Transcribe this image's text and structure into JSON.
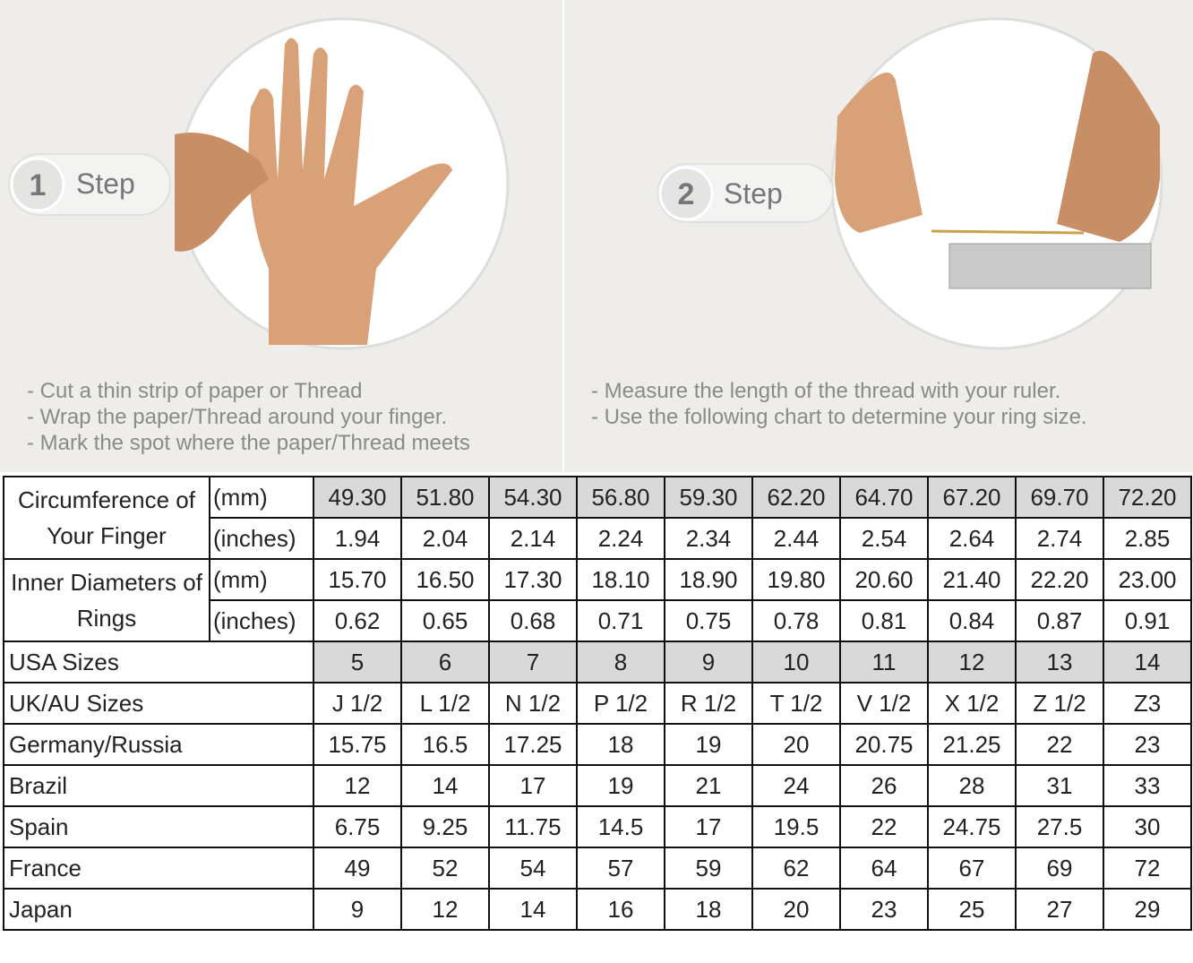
{
  "header": {
    "steps": [
      {
        "number": "1",
        "label": "Step",
        "bullets": [
          "- Cut a thin strip of paper or Thread",
          "- Wrap the paper/Thread around your finger.",
          "- Mark the spot where the paper/Thread meets"
        ]
      },
      {
        "number": "2",
        "label": "Step",
        "bullets": [
          "- Measure the length of the thread with your ruler.",
          "- Use the following chart to determine your ring size."
        ]
      }
    ]
  },
  "table": {
    "shade_color": "#d9d9d9",
    "groups": [
      {
        "label": "Circumference of Your Finger",
        "rows": [
          {
            "unit": "(mm)",
            "shaded": true,
            "values": [
              "49.30",
              "51.80",
              "54.30",
              "56.80",
              "59.30",
              "62.20",
              "64.70",
              "67.20",
              "69.70",
              "72.20"
            ]
          },
          {
            "unit": "(inches)",
            "shaded": false,
            "values": [
              "1.94",
              "2.04",
              "2.14",
              "2.24",
              "2.34",
              "2.44",
              "2.54",
              "2.64",
              "2.74",
              "2.85"
            ]
          }
        ]
      },
      {
        "label": "Inner Diameters of Rings",
        "rows": [
          {
            "unit": "(mm)",
            "shaded": false,
            "values": [
              "15.70",
              "16.50",
              "17.30",
              "18.10",
              "18.90",
              "19.80",
              "20.60",
              "21.40",
              "22.20",
              "23.00"
            ]
          },
          {
            "unit": "(inches)",
            "shaded": false,
            "values": [
              "0.62",
              "0.65",
              "0.68",
              "0.71",
              "0.75",
              "0.78",
              "0.81",
              "0.84",
              "0.87",
              "0.91"
            ]
          }
        ]
      }
    ],
    "rows": [
      {
        "label": "USA Sizes",
        "shaded": true,
        "values": [
          "5",
          "6",
          "7",
          "8",
          "9",
          "10",
          "11",
          "12",
          "13",
          "14"
        ]
      },
      {
        "label": "UK/AU Sizes",
        "shaded": false,
        "values": [
          "J 1/2",
          "L 1/2",
          "N 1/2",
          "P 1/2",
          "R 1/2",
          "T 1/2",
          "V 1/2",
          "X 1/2",
          "Z 1/2",
          "Z3"
        ]
      },
      {
        "label": "Germany/Russia",
        "shaded": false,
        "values": [
          "15.75",
          "16.5",
          "17.25",
          "18",
          "19",
          "20",
          "20.75",
          "21.25",
          "22",
          "23"
        ]
      },
      {
        "label": "Brazil",
        "shaded": false,
        "values": [
          "12",
          "14",
          "17",
          "19",
          "21",
          "24",
          "26",
          "28",
          "31",
          "33"
        ]
      },
      {
        "label": "Spain",
        "shaded": false,
        "values": [
          "6.75",
          "9.25",
          "11.75",
          "14.5",
          "17",
          "19.5",
          "22",
          "24.75",
          "27.5",
          "30"
        ]
      },
      {
        "label": "France",
        "shaded": false,
        "values": [
          "49",
          "52",
          "54",
          "57",
          "59",
          "62",
          "64",
          "67",
          "69",
          "72"
        ]
      },
      {
        "label": "Japan",
        "shaded": false,
        "values": [
          "9",
          "12",
          "14",
          "16",
          "18",
          "20",
          "23",
          "25",
          "27",
          "29"
        ]
      }
    ]
  }
}
